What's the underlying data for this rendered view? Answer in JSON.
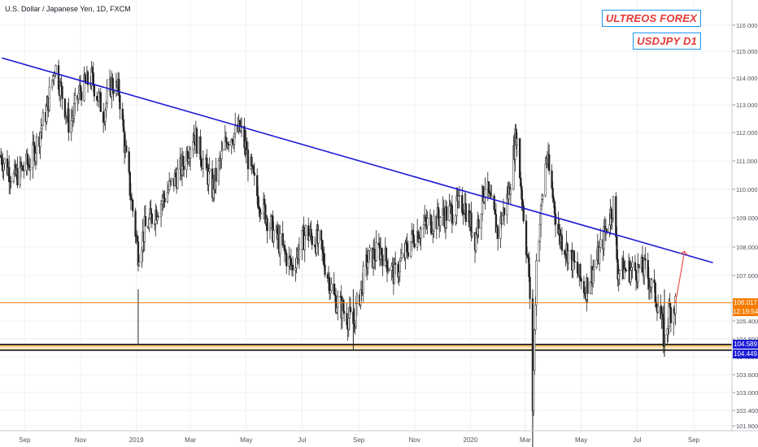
{
  "header": {
    "symbol_line": "U.S. Dollar / Japanese Yen, 1D, FXCM",
    "brand_tag": "ULTREOS FOREX",
    "pair_tag": "USDJPY D1"
  },
  "price_axis": {
    "ticks": [
      "116.000",
      "115.000",
      "114.000",
      "113.000",
      "112.000",
      "111.000",
      "110.000",
      "109.000",
      "108.000",
      "107.000",
      "106.000",
      "105.400",
      "104.800",
      "104.200",
      "103.600",
      "103.000",
      "102.400",
      "101.900"
    ]
  },
  "price_tags": {
    "last_price": "106.017",
    "countdown": "12:19:54",
    "support_upper": "104.589",
    "support_lower": "104.449"
  },
  "time_axis": {
    "labels": [
      "Sep",
      "Nov",
      "2019",
      "Mar",
      "May",
      "Jul",
      "Sep",
      "Nov",
      "2020",
      "Mar",
      "May",
      "Jul",
      "Sep"
    ]
  },
  "colors": {
    "trendline": "#1a1ad6",
    "support_band": "#f0a020",
    "support_band_fill": "#fbe6c2",
    "arrow": "#ef5350",
    "last_price_tag": "#f57c00",
    "support_tag": "#1a1ad6",
    "candle": "#222222",
    "tag_border": "#2196f3",
    "tag_text": "#e53935"
  },
  "chart_data": {
    "type": "candlestick",
    "instrument": "USD/JPY",
    "timeframe": "1D",
    "y_range": [
      101.9,
      116.7
    ],
    "x_range": [
      "2018-08-05",
      "2020-09-25"
    ],
    "anchors": [
      [
        "2018-08-05",
        111.2
      ],
      [
        "2018-08-20",
        110.4
      ],
      [
        "2018-09-08",
        111.0
      ],
      [
        "2018-09-25",
        112.8
      ],
      [
        "2018-10-04",
        114.5
      ],
      [
        "2018-10-20",
        112.2
      ],
      [
        "2018-10-31",
        113.5
      ],
      [
        "2018-11-13",
        114.0
      ],
      [
        "2018-11-26",
        112.7
      ],
      [
        "2018-12-05",
        113.8
      ],
      [
        "2018-12-13",
        113.5
      ],
      [
        "2018-12-21",
        111.0
      ],
      [
        "2019-01-03",
        107.8
      ],
      [
        "2019-01-10",
        108.6
      ],
      [
        "2019-01-25",
        109.4
      ],
      [
        "2019-02-20",
        110.8
      ],
      [
        "2019-03-05",
        112.0
      ],
      [
        "2019-03-25",
        110.0
      ],
      [
        "2019-04-10",
        111.8
      ],
      [
        "2019-04-25",
        112.1
      ],
      [
        "2019-05-13",
        109.8
      ],
      [
        "2019-05-31",
        108.5
      ],
      [
        "2019-06-20",
        107.3
      ],
      [
        "2019-07-05",
        108.5
      ],
      [
        "2019-07-20",
        108.1
      ],
      [
        "2019-08-05",
        106.2
      ],
      [
        "2019-08-26",
        105.3
      ],
      [
        "2019-09-10",
        107.5
      ],
      [
        "2019-09-25",
        107.9
      ],
      [
        "2019-10-10",
        107.0
      ],
      [
        "2019-10-31",
        108.4
      ],
      [
        "2019-11-15",
        108.8
      ],
      [
        "2019-12-10",
        109.2
      ],
      [
        "2019-12-25",
        109.5
      ],
      [
        "2020-01-06",
        108.3
      ],
      [
        "2020-01-17",
        110.2
      ],
      [
        "2020-01-31",
        108.5
      ],
      [
        "2020-02-12",
        109.9
      ],
      [
        "2020-02-20",
        112.0
      ],
      [
        "2020-03-05",
        107.0
      ],
      [
        "2020-03-09",
        102.5
      ],
      [
        "2020-03-13",
        107.5
      ],
      [
        "2020-03-24",
        111.2
      ],
      [
        "2020-04-06",
        108.5
      ],
      [
        "2020-04-20",
        107.6
      ],
      [
        "2020-05-05",
        106.5
      ],
      [
        "2020-05-20",
        107.7
      ],
      [
        "2020-06-05",
        109.5
      ],
      [
        "2020-06-10",
        107.2
      ],
      [
        "2020-06-25",
        107.2
      ],
      [
        "2020-07-10",
        107.2
      ],
      [
        "2020-07-24",
        106.0
      ],
      [
        "2020-07-31",
        104.7
      ],
      [
        "2020-08-05",
        105.7
      ],
      [
        "2020-08-12",
        106.0
      ]
    ],
    "trendline": {
      "start": [
        "2018-08-07",
        114.75
      ],
      "end": [
        "2020-09-22",
        107.45
      ]
    },
    "support_zone": [
      104.449,
      104.589
    ],
    "last_price_line": 106.017,
    "projection_arrow": {
      "from": [
        "2020-08-12",
        106.0
      ],
      "to": [
        "2020-08-22",
        107.85
      ]
    }
  }
}
